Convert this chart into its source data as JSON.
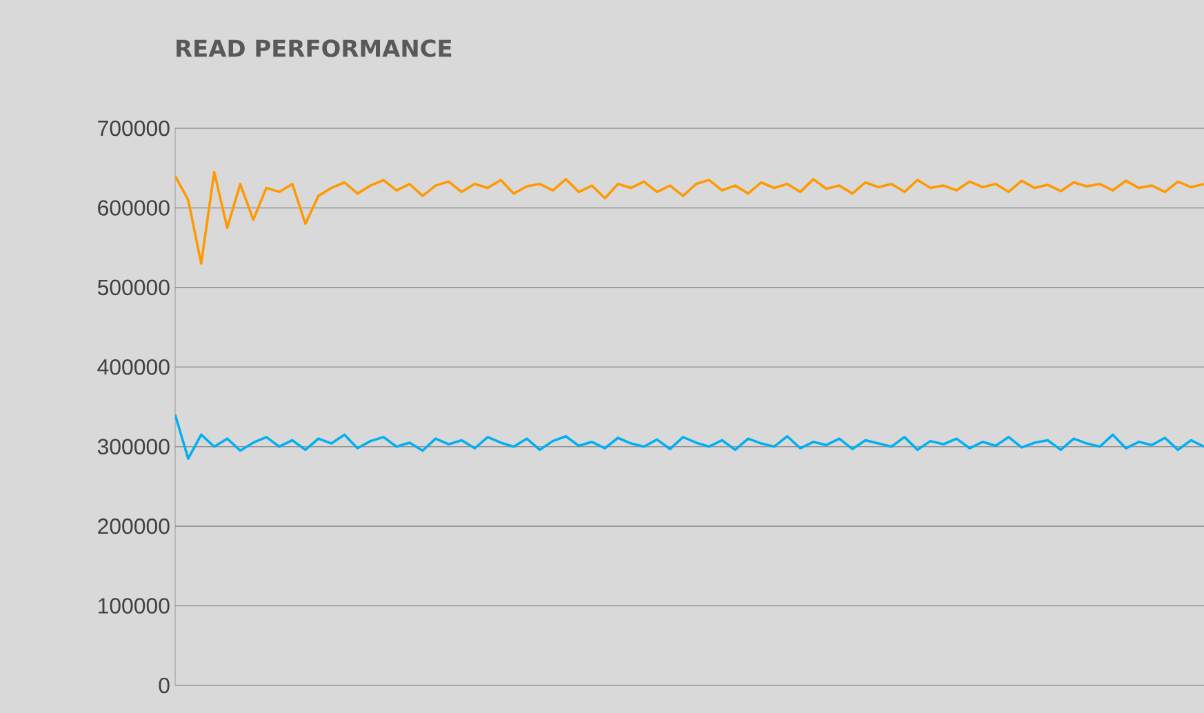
{
  "chart_data": {
    "type": "line",
    "title": "READ PERFORMANCE",
    "categories": [
      null,
      null,
      null,
      null,
      null,
      null,
      null,
      null,
      null,
      null,
      null,
      null,
      null,
      null,
      null,
      null,
      null,
      null,
      null,
      null,
      null,
      null,
      null,
      null,
      null,
      null,
      null,
      null,
      null,
      null,
      null,
      null,
      null,
      null,
      null,
      null,
      null,
      null,
      null,
      null,
      null,
      null,
      null,
      null,
      null,
      null,
      null,
      null,
      null,
      null,
      null,
      null,
      null,
      null,
      null,
      null,
      null,
      null,
      null,
      null,
      null,
      null,
      null,
      null,
      null,
      null,
      null,
      null,
      null,
      null,
      null,
      null,
      null,
      null,
      null,
      null,
      null,
      null,
      null,
      null
    ],
    "series": [
      {
        "color": "#ff9900",
        "values": [
          640000,
          610000,
          530000,
          645000,
          575000,
          630000,
          585000,
          625000,
          620000,
          630000,
          580000,
          615000,
          625000,
          632000,
          618000,
          628000,
          635000,
          622000,
          630000,
          615000,
          628000,
          633000,
          620000,
          630000,
          625000,
          635000,
          618000,
          627000,
          630000,
          622000,
          636000,
          620000,
          628000,
          612000,
          630000,
          625000,
          633000,
          620000,
          628000,
          615000,
          630000,
          635000,
          622000,
          628000,
          618000,
          632000,
          625000,
          630000,
          620000,
          636000,
          624000,
          628000,
          618000,
          632000,
          626000,
          630000,
          620000,
          635000,
          625000,
          628000,
          622000,
          633000,
          626000,
          630000,
          620000,
          634000,
          625000,
          629000,
          621000,
          632000,
          627000,
          630000,
          622000,
          634000,
          625000,
          628000,
          620000,
          633000,
          626000,
          630000
        ]
      },
      {
        "color": "#00b0f0",
        "values": [
          340000,
          285000,
          315000,
          300000,
          310000,
          295000,
          305000,
          312000,
          300000,
          308000,
          296000,
          310000,
          304000,
          315000,
          298000,
          307000,
          312000,
          300000,
          305000,
          295000,
          310000,
          303000,
          308000,
          298000,
          312000,
          305000,
          300000,
          310000,
          296000,
          307000,
          313000,
          301000,
          306000,
          298000,
          311000,
          304000,
          300000,
          309000,
          297000,
          312000,
          305000,
          300000,
          308000,
          296000,
          310000,
          304000,
          300000,
          313000,
          298000,
          306000,
          302000,
          310000,
          297000,
          308000,
          304000,
          300000,
          312000,
          296000,
          307000,
          303000,
          310000,
          298000,
          306000,
          301000,
          312000,
          299000,
          305000,
          308000,
          296000,
          310000,
          304000,
          300000,
          315000,
          298000,
          306000,
          302000,
          311000,
          296000,
          308000,
          300000
        ]
      }
    ],
    "ylim": [
      0,
      700000
    ],
    "yticks": [
      0,
      100000,
      200000,
      300000,
      400000,
      500000,
      600000,
      700000
    ],
    "grid": "y",
    "tick_labels": "y",
    "marker": "none",
    "line_style": "solid"
  }
}
